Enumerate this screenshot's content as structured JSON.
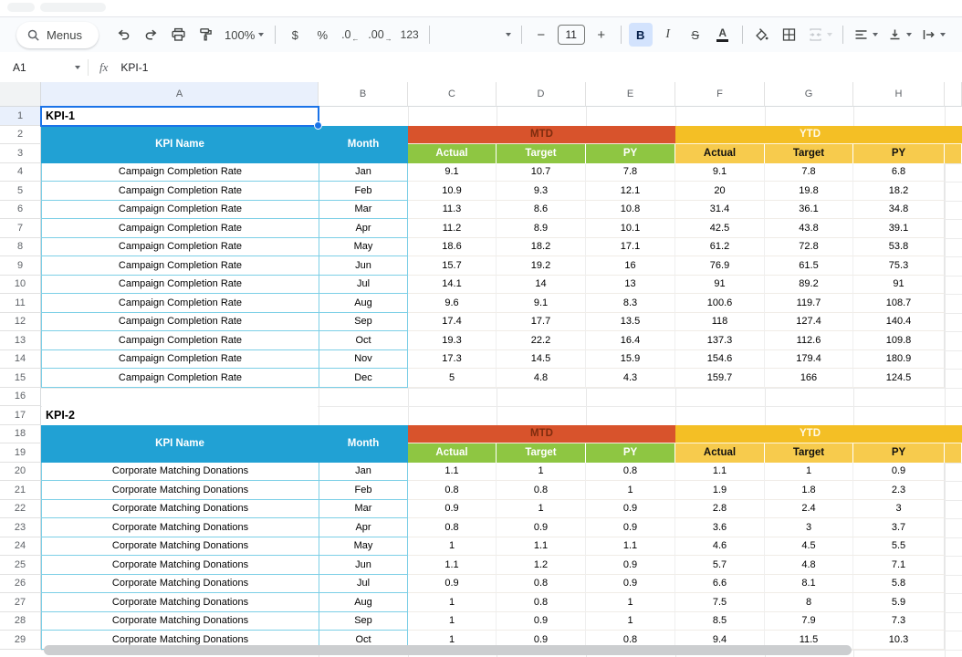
{
  "toolbar": {
    "search_label": "Menus",
    "zoom_value": "100%",
    "currency_label": "$",
    "percent_label": "%",
    "decrease_decimal_label": ".0",
    "increase_decimal_label": ".00",
    "more_formats_label": "123",
    "minus_label": "−",
    "font_size_value": "11",
    "plus_label": "+",
    "bold_label": "B",
    "italic_label": "I",
    "strikethrough_label": "S",
    "text_color_label": "A"
  },
  "formula_bar": {
    "cell_reference": "A1",
    "fx_label": "fx",
    "formula_value": "KPI-1"
  },
  "grid": {
    "column_headers": [
      "A",
      "B",
      "C",
      "D",
      "E",
      "F",
      "G",
      "H"
    ],
    "row_numbers": [
      1,
      2,
      3,
      4,
      5,
      6,
      7,
      8,
      9,
      10,
      11,
      12,
      13,
      14,
      15,
      16,
      17,
      18,
      19,
      20,
      21,
      22,
      23,
      24,
      25,
      26,
      27,
      28,
      29
    ],
    "selected_cell": "A1"
  },
  "tables": [
    {
      "title": "KPI-1",
      "title_row": 1,
      "header_rows": [
        2,
        3
      ],
      "data_start_row": 4,
      "kpi_name": "Campaign Completion Rate",
      "header": {
        "kpi_name": "KPI Name",
        "month": "Month",
        "mtd": "MTD",
        "ytd": "YTD",
        "sub_labels": [
          "Actual",
          "Target",
          "PY"
        ]
      },
      "rows": [
        [
          "Jan",
          "9.1",
          "10.7",
          "7.8",
          "9.1",
          "7.8",
          "6.8"
        ],
        [
          "Feb",
          "10.9",
          "9.3",
          "12.1",
          "20",
          "19.8",
          "18.2"
        ],
        [
          "Mar",
          "11.3",
          "8.6",
          "10.8",
          "31.4",
          "36.1",
          "34.8"
        ],
        [
          "Apr",
          "11.2",
          "8.9",
          "10.1",
          "42.5",
          "43.8",
          "39.1"
        ],
        [
          "May",
          "18.6",
          "18.2",
          "17.1",
          "61.2",
          "72.8",
          "53.8"
        ],
        [
          "Jun",
          "15.7",
          "19.2",
          "16",
          "76.9",
          "61.5",
          "75.3"
        ],
        [
          "Jul",
          "14.1",
          "14",
          "13",
          "91",
          "89.2",
          "91"
        ],
        [
          "Aug",
          "9.6",
          "9.1",
          "8.3",
          "100.6",
          "119.7",
          "108.7"
        ],
        [
          "Sep",
          "17.4",
          "17.7",
          "13.5",
          "118",
          "127.4",
          "140.4"
        ],
        [
          "Oct",
          "19.3",
          "22.2",
          "16.4",
          "137.3",
          "112.6",
          "109.8"
        ],
        [
          "Nov",
          "17.3",
          "14.5",
          "15.9",
          "154.6",
          "179.4",
          "180.9"
        ],
        [
          "Dec",
          "5",
          "4.8",
          "4.3",
          "159.7",
          "166",
          "124.5"
        ]
      ]
    },
    {
      "title": "KPI-2",
      "title_row": 17,
      "header_rows": [
        18,
        19
      ],
      "data_start_row": 20,
      "kpi_name": "Corporate Matching Donations",
      "header": {
        "kpi_name": "KPI Name",
        "month": "Month",
        "mtd": "MTD",
        "ytd": "YTD",
        "sub_labels": [
          "Actual",
          "Target",
          "PY"
        ]
      },
      "rows": [
        [
          "Jan",
          "1.1",
          "1",
          "0.8",
          "1.1",
          "1",
          "0.9"
        ],
        [
          "Feb",
          "0.8",
          "0.8",
          "1",
          "1.9",
          "1.8",
          "2.3"
        ],
        [
          "Mar",
          "0.9",
          "1",
          "0.9",
          "2.8",
          "2.4",
          "3"
        ],
        [
          "Apr",
          "0.8",
          "0.9",
          "0.9",
          "3.6",
          "3",
          "3.7"
        ],
        [
          "May",
          "1",
          "1.1",
          "1.1",
          "4.6",
          "4.5",
          "5.5"
        ],
        [
          "Jun",
          "1.1",
          "1.2",
          "0.9",
          "5.7",
          "4.8",
          "7.1"
        ],
        [
          "Jul",
          "0.9",
          "0.8",
          "0.9",
          "6.6",
          "8.1",
          "5.8"
        ],
        [
          "Aug",
          "1",
          "0.8",
          "1",
          "7.5",
          "8",
          "5.9"
        ],
        [
          "Sep",
          "1",
          "0.9",
          "1",
          "8.5",
          "7.9",
          "7.3"
        ],
        [
          "Oct",
          "1",
          "0.9",
          "0.8",
          "9.4",
          "11.5",
          "10.3"
        ]
      ]
    }
  ],
  "colors": {
    "table_header_blue": "#21A1D4",
    "mtd_orange": "#D8532C",
    "ytd_gold": "#F4BF25",
    "sub_green": "#8EC642",
    "sub_gold": "#F7CB4D",
    "table_border_cyan": "#7CCFE6",
    "selection_blue": "#1A73E8"
  }
}
